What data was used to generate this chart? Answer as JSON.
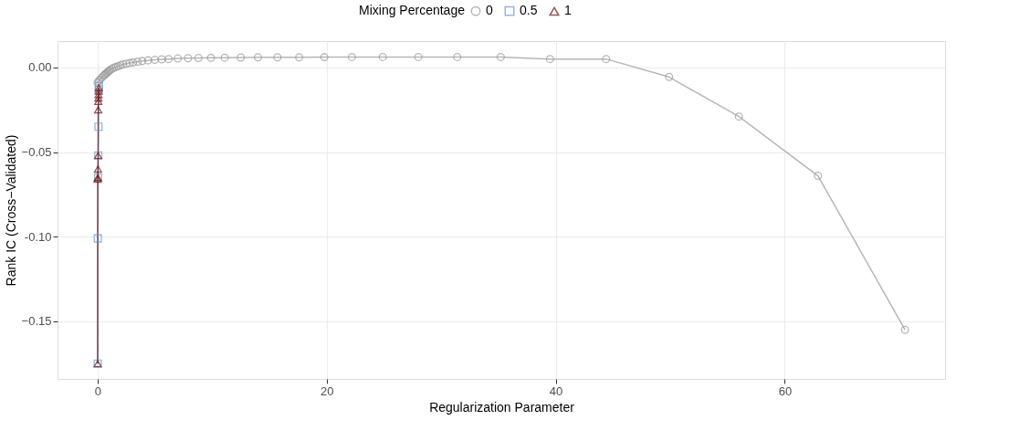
{
  "chart_data": {
    "type": "line",
    "xlabel": "Regularization Parameter",
    "ylabel": "Rank IC (Cross−Validated)",
    "legend_title": "Mixing Percentage",
    "legend": "top",
    "grid": true,
    "line_style": "solid",
    "xlim": [
      -3.5,
      74
    ],
    "xticks": [
      0,
      20,
      40,
      60
    ],
    "ylim": [
      -0.184,
      0.0156
    ],
    "yticks": [
      {
        "value": 0,
        "label": "0.00"
      },
      -0.05,
      {
        "value": -0.1,
        "label": "-0.10"
      },
      -0.15
    ],
    "series": [
      {
        "name": "0",
        "color": "#999999",
        "marker": "circle",
        "x": [
          70.5,
          62.9,
          56.0,
          49.9,
          44.4,
          39.5,
          35.2,
          31.4,
          28.0,
          24.9,
          22.2,
          19.8,
          17.6,
          15.7,
          14.0,
          12.5,
          11.1,
          9.9,
          8.8,
          7.9,
          7.0,
          6.2,
          5.6,
          5.0,
          4.4,
          3.9,
          3.5,
          3.1,
          2.8,
          2.5,
          2.2,
          2.0,
          1.8,
          1.6,
          1.4,
          1.25,
          1.1,
          1.0,
          0.9,
          0.8,
          0.7,
          0.6,
          0.5,
          0.35,
          0.2,
          0.1,
          0.0
        ],
        "values": [
          -0.155,
          -0.064,
          -0.029,
          -0.0056,
          0.005,
          0.005,
          0.0062,
          0.0062,
          0.0062,
          0.0062,
          0.0062,
          0.0061,
          0.006,
          0.006,
          0.006,
          0.0059,
          0.0058,
          0.0057,
          0.0056,
          0.0055,
          0.0053,
          0.005,
          0.0048,
          0.0045,
          0.0042,
          0.0038,
          0.0034,
          0.003,
          0.0026,
          0.0022,
          0.0018,
          0.0013,
          0.0008,
          0.0003,
          -0.0002,
          -0.0008,
          -0.0014,
          -0.002,
          -0.0026,
          -0.0032,
          -0.0038,
          -0.0044,
          -0.005,
          -0.006,
          -0.0072,
          -0.008,
          -0.009
        ]
      },
      {
        "name": "0.5",
        "color": "#6699cc",
        "marker": "square",
        "x": [
          0.12,
          0.1,
          0.08,
          0.06,
          0.04,
          0.02,
          0.01
        ],
        "values": [
          -0.011,
          -0.013,
          -0.035,
          -0.052,
          -0.065,
          -0.101,
          -0.175
        ]
      },
      {
        "name": "1",
        "color": "#6b0f0f",
        "marker": "triangle",
        "x": [
          0.1,
          0.09,
          0.08,
          0.07,
          0.06,
          0.05,
          0.04,
          0.03,
          0.02,
          0.01,
          0.005
        ],
        "values": [
          -0.012,
          -0.014,
          -0.016,
          -0.018,
          -0.02,
          -0.025,
          -0.052,
          -0.06,
          -0.065,
          -0.066,
          -0.175
        ]
      }
    ]
  }
}
